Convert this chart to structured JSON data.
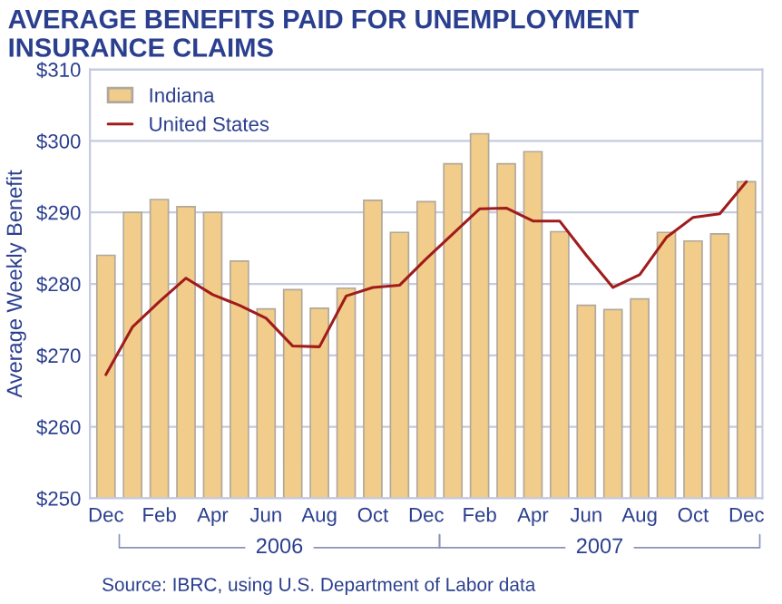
{
  "chart_data": {
    "type": "bar",
    "title": "AVERAGE BENEFITS PAID FOR UNEMPLOYMENT\nINSURANCE CLAIMS",
    "ylabel": "Average Weekly Benefit",
    "categories": [
      "Dec",
      null,
      "Feb",
      null,
      "Apr",
      null,
      "Jun",
      null,
      "Aug",
      null,
      "Oct",
      null,
      "Dec",
      null,
      "Feb",
      null,
      "Apr",
      null,
      "Jun",
      null,
      "Aug",
      null,
      "Oct",
      null,
      "Dec"
    ],
    "series": [
      {
        "name": "Indiana",
        "color": "#f2cc8a",
        "values": [
          284,
          290,
          291.8,
          290.8,
          290,
          283.2,
          276.5,
          279.2,
          276.6,
          279.4,
          291.7,
          287.2,
          291.5,
          296.8,
          301,
          296.8,
          298.5,
          287.3,
          277,
          276.4,
          277.9,
          287.2,
          286,
          287,
          294.3
        ]
      },
      {
        "name": "United States",
        "type": "line",
        "color": "#a01c1c",
        "values": [
          267.3,
          274,
          277.5,
          280.8,
          278.5,
          277,
          275.2,
          271.3,
          271.2,
          278.3,
          279.5,
          279.8,
          283.5,
          287,
          290.5,
          290.6,
          288.8,
          288.8,
          284,
          279.5,
          281.3,
          286.5,
          289.3,
          289.8,
          294.3
        ]
      }
    ],
    "ylim": [
      250,
      310
    ],
    "yticks": [
      {
        "value": 250,
        "label": "$250"
      },
      {
        "value": 260,
        "label": "$260"
      },
      {
        "value": 270,
        "label": "$270"
      },
      {
        "value": 280,
        "label": "$280"
      },
      {
        "value": 290,
        "label": "$290"
      },
      {
        "value": 300,
        "label": "$300"
      },
      {
        "value": 310,
        "label": "$310"
      }
    ],
    "grid": "y",
    "legend": "top left",
    "annotations": [
      "2006",
      "2007",
      "Source: IBRC, using U.S. Department of Labor data"
    ]
  }
}
